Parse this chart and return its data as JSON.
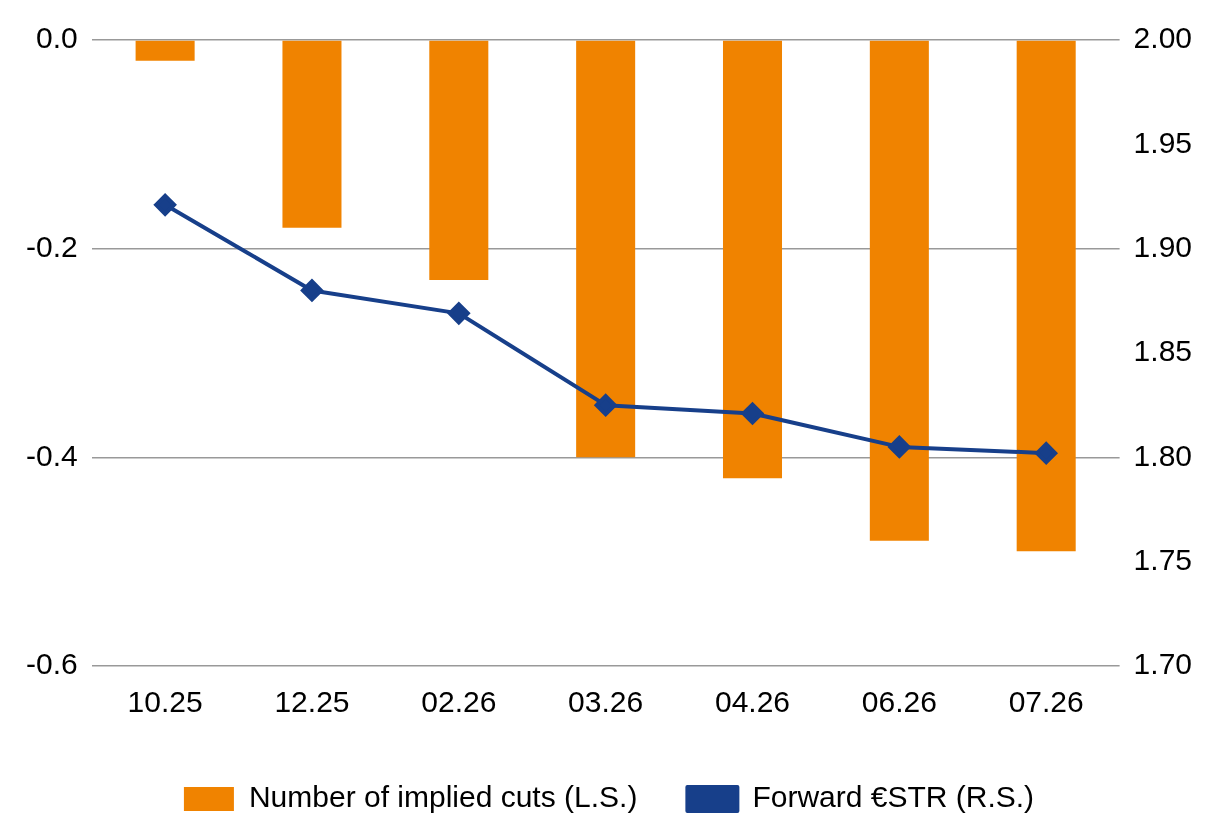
{
  "chart_data": {
    "type": "bar",
    "categories": [
      "10.25",
      "12.25",
      "02.26",
      "03.26",
      "04.26",
      "06.26",
      "07.26"
    ],
    "series": [
      {
        "name": "Number of implied cuts (L.S.)",
        "color": "#f08300",
        "values": [
          -0.02,
          -0.18,
          -0.23,
          -0.4,
          -0.42,
          -0.48,
          -0.49
        ]
      },
      {
        "name": "Forward €STR (R.S.)",
        "type": "line",
        "axis": "y2",
        "color": "#173f8a",
        "values": [
          1.921,
          1.88,
          1.869,
          1.825,
          1.821,
          1.805,
          1.802
        ]
      }
    ],
    "ylim": [
      -0.6,
      0
    ],
    "yticks": [
      {
        "value": 0,
        "label": "0.0"
      },
      -0.2,
      -0.4,
      -0.6
    ],
    "y2lim": [
      1.7,
      2.0
    ],
    "y2ticks": [
      {
        "value": 1.7,
        "label": "1.70"
      },
      {
        "value": 1.75,
        "label": "1.75"
      },
      {
        "value": 1.8,
        "label": "1.80"
      },
      {
        "value": 1.85,
        "label": "1.85"
      },
      {
        "value": 1.9,
        "label": "1.90"
      },
      {
        "value": 1.95,
        "label": "1.95"
      },
      {
        "value": 2.0,
        "label": "2.00"
      }
    ],
    "grid": "y",
    "legend": "bottom",
    "marker": "diamond",
    "line_style": "solid"
  }
}
